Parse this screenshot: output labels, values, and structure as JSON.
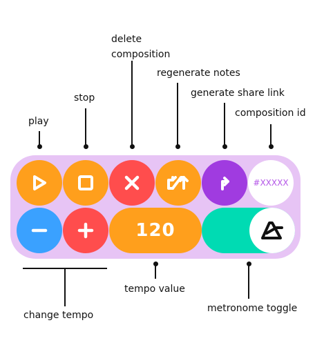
{
  "annotations": {
    "play": "play",
    "stop": "stop",
    "delete_line1": "delete",
    "delete_line2": "composition",
    "regenerate": "regenerate notes",
    "share": "generate share link",
    "composition_id": "composition id",
    "change_tempo": "change tempo",
    "tempo_value": "tempo value",
    "metronome_toggle": "metronome toggle"
  },
  "controls": {
    "composition_id": "#XXXXX",
    "tempo": "120"
  },
  "icons": {
    "play": "play-icon",
    "stop": "stop-icon",
    "delete": "close-icon",
    "regenerate": "swap-arrows-icon",
    "share": "arrow-up-icon",
    "minus": "minus-icon",
    "plus": "plus-icon",
    "metronome": "metronome-icon"
  },
  "colors": {
    "panel": "#e7c4f5",
    "orange": "#ff9f1c",
    "red": "#ff4d4d",
    "purple": "#a03be0",
    "blue": "#3aa1ff",
    "teal": "#00dbb3",
    "id_text": "#b455e8"
  }
}
